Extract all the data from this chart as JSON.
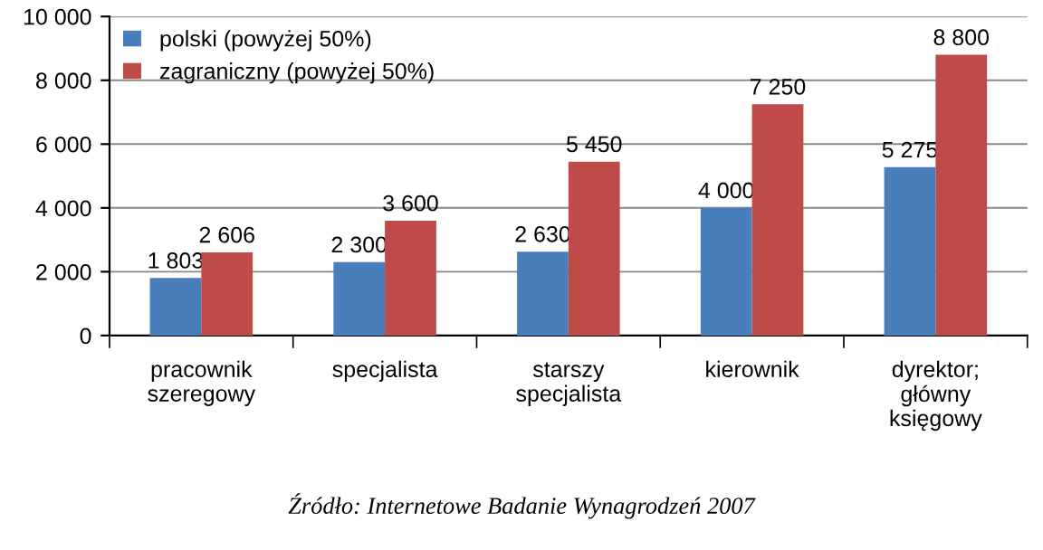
{
  "chart_data": {
    "type": "bar",
    "categories": [
      "pracownik\nszeregowy",
      "specjalista",
      "starszy\nspecjalista",
      "kierownik",
      "dyrektor;\ngłówny\nksięgowy"
    ],
    "series": [
      {
        "name": "polski (powyżej 50%)",
        "color": "#4a7ebb",
        "values": [
          1803,
          2300,
          2630,
          4000,
          5275
        ],
        "value_labels": [
          "1 803",
          "2 300",
          "2 630",
          "4 000",
          "5 275"
        ]
      },
      {
        "name": "zagraniczny (powyżej 50%)",
        "color": "#be4b48",
        "values": [
          2606,
          3600,
          5450,
          7250,
          8800
        ],
        "value_labels": [
          "2 606",
          "3 600",
          "5 450",
          "7 250",
          "8 800"
        ]
      }
    ],
    "ylim": [
      0,
      10000
    ],
    "yticks": [
      {
        "value": 0,
        "label": "0"
      },
      {
        "value": 2000,
        "label": "2 000"
      },
      {
        "value": 4000,
        "label": "4 000"
      },
      {
        "value": 6000,
        "label": "6 000"
      },
      {
        "value": 8000,
        "label": "8 000"
      },
      {
        "value": 10000,
        "label": "10 000"
      }
    ],
    "grid": "y",
    "legend": "top left",
    "annotations": [
      "Źródło: Internetowe Badanie Wynagrodzeń 2007"
    ]
  }
}
